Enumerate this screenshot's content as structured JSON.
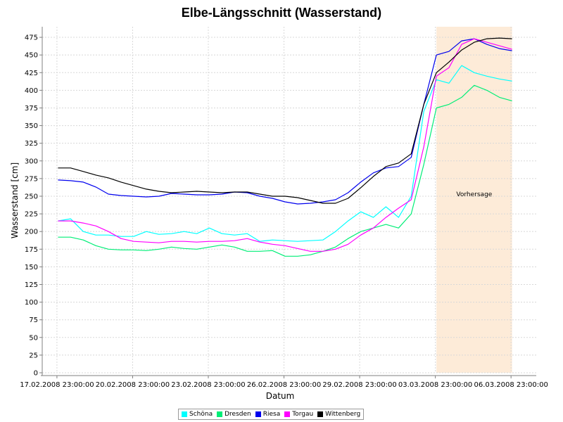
{
  "chart_data": {
    "type": "line",
    "title": "Elbe-Längsschnitt (Wasserstand)",
    "xlabel": "Datum",
    "ylabel": "Wasserstand [cm]",
    "ylim": [
      0,
      490
    ],
    "xlim": [
      "2008-02-17 09:00",
      "2008-03-07 23:00"
    ],
    "yticks": [
      0,
      25,
      50,
      75,
      100,
      125,
      150,
      175,
      200,
      225,
      250,
      275,
      300,
      325,
      350,
      375,
      400,
      425,
      450,
      475
    ],
    "xticks": [
      "2008-02-17 23:00",
      "2008-02-20 23:00",
      "2008-02-23 23:00",
      "2008-02-26 23:00",
      "2008-02-29 23:00",
      "2008-03-03 23:00",
      "2008-03-06 23:00"
    ],
    "xtick_labels": [
      "17.02.2008 23:00:00",
      "20.02.2008 23:00:00",
      "23.02.2008 23:00:00",
      "26.02.2008 23:00:00",
      "29.02.2008 23:00:00",
      "03.03.2008 23:00:00",
      "06.03.2008 23:00:00"
    ],
    "grid": true,
    "legend_position": "bottom-center",
    "forecast_region": {
      "label": "Vorhersage",
      "x_start": "2008-03-04 00:00",
      "x_end": "2008-03-07 00:00",
      "color": "#fdebd8"
    },
    "series": [
      {
        "name": "Schöna",
        "color": "#00ffff",
        "x": [
          "2008-02-18 00:00",
          "2008-02-18 12:00",
          "2008-02-19 00:00",
          "2008-02-19 12:00",
          "2008-02-20 00:00",
          "2008-02-20 12:00",
          "2008-02-21 00:00",
          "2008-02-21 12:00",
          "2008-02-22 00:00",
          "2008-02-22 12:00",
          "2008-02-23 00:00",
          "2008-02-23 12:00",
          "2008-02-24 00:00",
          "2008-02-24 12:00",
          "2008-02-25 00:00",
          "2008-02-25 12:00",
          "2008-02-26 00:00",
          "2008-02-26 12:00",
          "2008-02-27 00:00",
          "2008-02-27 12:00",
          "2008-02-28 00:00",
          "2008-02-28 12:00",
          "2008-02-29 00:00",
          "2008-02-29 12:00",
          "2008-03-01 00:00",
          "2008-03-01 12:00",
          "2008-03-02 00:00",
          "2008-03-02 12:00",
          "2008-03-03 00:00",
          "2008-03-03 12:00",
          "2008-03-04 00:00",
          "2008-03-04 12:00",
          "2008-03-05 00:00",
          "2008-03-05 12:00",
          "2008-03-06 00:00",
          "2008-03-06 12:00",
          "2008-03-07 00:00"
        ],
        "values": [
          215,
          218,
          200,
          195,
          195,
          193,
          193,
          200,
          196,
          197,
          200,
          197,
          205,
          197,
          195,
          197,
          186,
          188,
          187,
          186,
          187,
          188,
          200,
          215,
          228,
          220,
          235,
          220,
          250,
          370,
          415,
          410,
          435,
          425,
          420,
          416,
          413
        ]
      },
      {
        "name": "Dresden",
        "color": "#00ee77",
        "x": [
          "2008-02-18 00:00",
          "2008-02-18 12:00",
          "2008-02-19 00:00",
          "2008-02-19 12:00",
          "2008-02-20 00:00",
          "2008-02-20 12:00",
          "2008-02-21 00:00",
          "2008-02-21 12:00",
          "2008-02-22 00:00",
          "2008-02-22 12:00",
          "2008-02-23 00:00",
          "2008-02-23 12:00",
          "2008-02-24 00:00",
          "2008-02-24 12:00",
          "2008-02-25 00:00",
          "2008-02-25 12:00",
          "2008-02-26 00:00",
          "2008-02-26 12:00",
          "2008-02-27 00:00",
          "2008-02-27 12:00",
          "2008-02-28 00:00",
          "2008-02-28 12:00",
          "2008-02-29 00:00",
          "2008-02-29 12:00",
          "2008-03-01 00:00",
          "2008-03-01 12:00",
          "2008-03-02 00:00",
          "2008-03-02 12:00",
          "2008-03-03 00:00",
          "2008-03-03 12:00",
          "2008-03-04 00:00",
          "2008-03-04 12:00",
          "2008-03-05 00:00",
          "2008-03-05 12:00",
          "2008-03-06 00:00",
          "2008-03-06 12:00",
          "2008-03-07 00:00"
        ],
        "values": [
          192,
          192,
          188,
          180,
          175,
          174,
          174,
          173,
          175,
          178,
          176,
          175,
          178,
          181,
          178,
          172,
          172,
          173,
          165,
          165,
          167,
          172,
          178,
          190,
          200,
          205,
          210,
          205,
          225,
          295,
          375,
          380,
          390,
          407,
          400,
          390,
          385
        ]
      },
      {
        "name": "Riesa",
        "color": "#0000ee",
        "x": [
          "2008-02-18 00:00",
          "2008-02-18 12:00",
          "2008-02-19 00:00",
          "2008-02-19 12:00",
          "2008-02-20 00:00",
          "2008-02-20 12:00",
          "2008-02-21 00:00",
          "2008-02-21 12:00",
          "2008-02-22 00:00",
          "2008-02-22 12:00",
          "2008-02-23 00:00",
          "2008-02-23 12:00",
          "2008-02-24 00:00",
          "2008-02-24 12:00",
          "2008-02-25 00:00",
          "2008-02-25 12:00",
          "2008-02-26 00:00",
          "2008-02-26 12:00",
          "2008-02-27 00:00",
          "2008-02-27 12:00",
          "2008-02-28 00:00",
          "2008-02-28 12:00",
          "2008-02-29 00:00",
          "2008-02-29 12:00",
          "2008-03-01 00:00",
          "2008-03-01 12:00",
          "2008-03-02 00:00",
          "2008-03-02 12:00",
          "2008-03-03 00:00",
          "2008-03-03 12:00",
          "2008-03-04 00:00",
          "2008-03-04 12:00",
          "2008-03-05 00:00",
          "2008-03-05 12:00",
          "2008-03-06 00:00",
          "2008-03-06 12:00",
          "2008-03-07 00:00"
        ],
        "values": [
          273,
          272,
          270,
          263,
          253,
          251,
          250,
          249,
          250,
          254,
          253,
          252,
          252,
          253,
          256,
          255,
          250,
          247,
          242,
          239,
          240,
          242,
          245,
          255,
          270,
          283,
          290,
          292,
          305,
          380,
          450,
          455,
          470,
          473,
          465,
          459,
          456
        ]
      },
      {
        "name": "Torgau",
        "color": "#ff00ff",
        "x": [
          "2008-02-18 00:00",
          "2008-02-18 12:00",
          "2008-02-19 00:00",
          "2008-02-19 12:00",
          "2008-02-20 00:00",
          "2008-02-20 12:00",
          "2008-02-21 00:00",
          "2008-02-21 12:00",
          "2008-02-22 00:00",
          "2008-02-22 12:00",
          "2008-02-23 00:00",
          "2008-02-23 12:00",
          "2008-02-24 00:00",
          "2008-02-24 12:00",
          "2008-02-25 00:00",
          "2008-02-25 12:00",
          "2008-02-26 00:00",
          "2008-02-26 12:00",
          "2008-02-27 00:00",
          "2008-02-27 12:00",
          "2008-02-28 00:00",
          "2008-02-28 12:00",
          "2008-02-29 00:00",
          "2008-02-29 12:00",
          "2008-03-01 00:00",
          "2008-03-01 12:00",
          "2008-03-02 00:00",
          "2008-03-02 12:00",
          "2008-03-03 00:00",
          "2008-03-03 12:00",
          "2008-03-04 00:00",
          "2008-03-04 12:00",
          "2008-03-05 00:00",
          "2008-03-05 12:00",
          "2008-03-06 00:00",
          "2008-03-06 12:00",
          "2008-03-07 00:00"
        ],
        "values": [
          215,
          215,
          212,
          208,
          200,
          190,
          186,
          185,
          184,
          186,
          186,
          185,
          186,
          186,
          187,
          190,
          185,
          182,
          180,
          176,
          172,
          172,
          175,
          182,
          195,
          205,
          220,
          233,
          245,
          320,
          420,
          432,
          465,
          473,
          468,
          463,
          458
        ]
      },
      {
        "name": "Wittenberg",
        "color": "#000000",
        "x": [
          "2008-02-18 00:00",
          "2008-02-18 12:00",
          "2008-02-19 00:00",
          "2008-02-19 12:00",
          "2008-02-20 00:00",
          "2008-02-20 12:00",
          "2008-02-21 00:00",
          "2008-02-21 12:00",
          "2008-02-22 00:00",
          "2008-02-22 12:00",
          "2008-02-23 00:00",
          "2008-02-23 12:00",
          "2008-02-24 00:00",
          "2008-02-24 12:00",
          "2008-02-25 00:00",
          "2008-02-25 12:00",
          "2008-02-26 00:00",
          "2008-02-26 12:00",
          "2008-02-27 00:00",
          "2008-02-27 12:00",
          "2008-02-28 00:00",
          "2008-02-28 12:00",
          "2008-02-29 00:00",
          "2008-02-29 12:00",
          "2008-03-01 00:00",
          "2008-03-01 12:00",
          "2008-03-02 00:00",
          "2008-03-02 12:00",
          "2008-03-03 00:00",
          "2008-03-03 12:00",
          "2008-03-04 00:00",
          "2008-03-04 12:00",
          "2008-03-05 00:00",
          "2008-03-05 12:00",
          "2008-03-06 00:00",
          "2008-03-06 12:00",
          "2008-03-07 00:00"
        ],
        "values": [
          290,
          290,
          285,
          280,
          276,
          270,
          265,
          260,
          257,
          255,
          256,
          257,
          256,
          255,
          256,
          256,
          253,
          250,
          250,
          248,
          244,
          240,
          240,
          247,
          262,
          278,
          292,
          297,
          310,
          380,
          425,
          440,
          457,
          468,
          473,
          474,
          473
        ]
      }
    ]
  }
}
